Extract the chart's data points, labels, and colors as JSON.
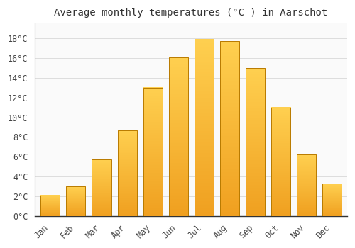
{
  "months": [
    "Jan",
    "Feb",
    "Mar",
    "Apr",
    "May",
    "Jun",
    "Jul",
    "Aug",
    "Sep",
    "Oct",
    "Nov",
    "Dec"
  ],
  "values": [
    2.1,
    3.0,
    5.7,
    8.7,
    13.0,
    16.1,
    17.9,
    17.7,
    15.0,
    11.0,
    6.2,
    3.3
  ],
  "bar_color_bottom": "#F0A020",
  "bar_color_top": "#FFD050",
  "bar_edge_color": "#B87A00",
  "background_color": "#FFFFFF",
  "plot_bg_color": "#FAFAFA",
  "grid_color": "#DDDDDD",
  "title": "Average monthly temperatures (°C ) in Aarschot",
  "title_fontsize": 10,
  "tick_fontsize": 8.5,
  "ylim": [
    0,
    19.5
  ],
  "yticks": [
    0,
    2,
    4,
    6,
    8,
    10,
    12,
    14,
    16,
    18
  ],
  "ytick_labels": [
    "0°C",
    "2°C",
    "4°C",
    "6°C",
    "8°C",
    "10°C",
    "12°C",
    "14°C",
    "16°C",
    "18°C"
  ]
}
